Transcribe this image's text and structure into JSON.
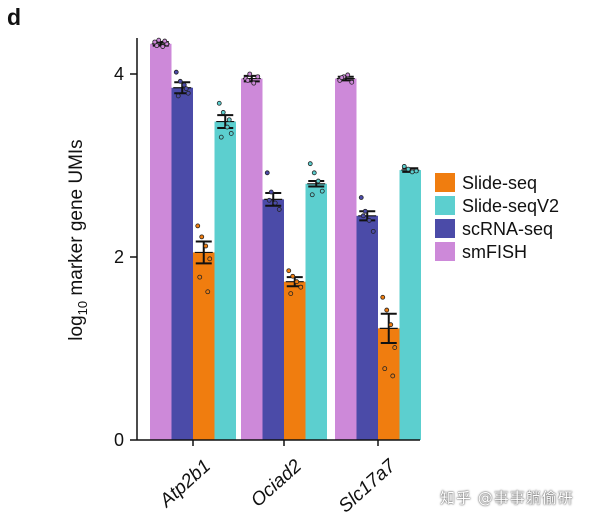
{
  "panel_label": "d",
  "watermark": "知乎 @事事躺偷研",
  "chart_data": {
    "type": "bar",
    "title": "",
    "xlabel": "",
    "ylabel_main": "log",
    "ylabel_sub": "10",
    "ylabel_rest": " marker gene UMIs",
    "ylim": [
      0,
      4.4
    ],
    "yticks": [
      0,
      2,
      4
    ],
    "categories": [
      "Atp2b1",
      "Ociad2",
      "Slc17a7"
    ],
    "series": [
      {
        "name": "smFISH",
        "color": "#cd89d9",
        "values": [
          4.33,
          3.95,
          3.95
        ],
        "err": [
          0.02,
          0.03,
          0.02
        ],
        "points": [
          [
            4.35,
            4.37,
            4.3,
            4.33,
            4.31,
            4.36
          ],
          [
            3.95,
            4.0,
            3.9,
            3.97,
            3.93
          ],
          [
            3.93,
            3.97,
            3.99,
            3.91,
            3.96
          ]
        ]
      },
      {
        "name": "scRNA-seq",
        "color": "#4b4ba8",
        "values": [
          3.85,
          2.63,
          2.45
        ],
        "err": [
          0.06,
          0.07,
          0.05
        ],
        "points": [
          [
            4.02,
            3.92,
            3.88,
            3.79,
            3.76,
            3.84
          ],
          [
            2.92,
            2.71,
            2.59,
            2.52,
            2.62
          ],
          [
            2.65,
            2.5,
            2.4,
            2.28,
            2.45
          ]
        ]
      },
      {
        "name": "Slide-seq",
        "color": "#f07d0f",
        "values": [
          2.05,
          1.73,
          1.22
        ],
        "err": [
          0.12,
          0.05,
          0.16
        ],
        "points": [
          [
            2.34,
            2.22,
            2.12,
            1.98,
            1.78,
            1.62
          ],
          [
            1.85,
            1.79,
            1.73,
            1.67,
            1.6
          ],
          [
            1.56,
            1.42,
            1.26,
            1.01,
            0.78,
            0.7
          ]
        ]
      },
      {
        "name": "Slide-seqV2",
        "color": "#5ccfcf",
        "values": [
          3.48,
          2.8,
          2.95
        ],
        "err": [
          0.07,
          0.03,
          0.02
        ],
        "points": [
          [
            3.68,
            3.58,
            3.42,
            3.35,
            3.31,
            3.5
          ],
          [
            3.02,
            2.92,
            2.83,
            2.72,
            2.68
          ],
          [
            2.99,
            2.96,
            2.93,
            2.94
          ]
        ]
      }
    ],
    "legend": {
      "placement": "right",
      "entries": [
        {
          "name": "Slide-seq",
          "color": "#f07d0f"
        },
        {
          "name": "Slide-seqV2",
          "color": "#5ccfcf"
        },
        {
          "name": "scRNA-seq",
          "color": "#4b4ba8"
        },
        {
          "name": "smFISH",
          "color": "#cd89d9"
        }
      ]
    }
  }
}
